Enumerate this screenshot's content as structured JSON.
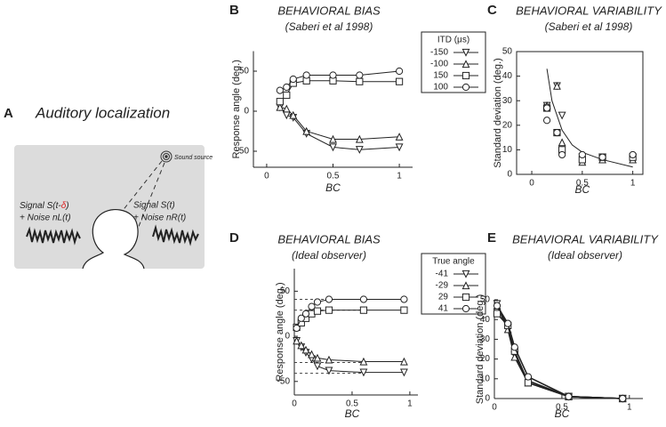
{
  "panel_a": {
    "label": "A",
    "title": "Auditory localization",
    "source": "Sound source",
    "left_signal": {
      "start": "Signal S(t-",
      "delta": "δ",
      "end": ")",
      "noise": "+ Noise nL(t)"
    },
    "right_signal": {
      "text": "Signal S(t)",
      "noise": "+ Noise nR(t)"
    }
  },
  "chart_data": [
    {
      "type": "line",
      "panel": "B",
      "title": "BEHAVIORAL BIAS",
      "subtitle": "(Saberi et al 1998)",
      "xlabel": "BC",
      "ylabel": "Response angle (deg.)",
      "xlim": [
        -0.1,
        1.1
      ],
      "ylim": [
        -70,
        75
      ],
      "xticks": [
        0,
        0.5,
        1
      ],
      "yticks": [
        -50,
        0,
        50
      ],
      "legend_title": "ITD (μs)",
      "x": [
        0.1,
        0.15,
        0.2,
        0.3,
        0.5,
        0.7,
        1.0
      ],
      "series": [
        {
          "name": "-150",
          "marker": "v",
          "values": [
            5,
            -5,
            -8,
            -28,
            -45,
            -48,
            -45
          ]
        },
        {
          "name": "-100",
          "marker": "^",
          "values": [
            5,
            3,
            -5,
            -25,
            -35,
            -35,
            -32
          ]
        },
        {
          "name": "150",
          "marker": "s",
          "values": [
            12,
            20,
            35,
            38,
            38,
            37,
            37
          ]
        },
        {
          "name": "100",
          "marker": "o",
          "values": [
            26,
            30,
            40,
            45,
            45,
            45,
            50
          ]
        }
      ]
    },
    {
      "type": "scatter",
      "panel": "C",
      "title": "BEHAVIORAL VARIABILITY",
      "subtitle": "(Saberi et al 1998)",
      "xlabel": "BC",
      "ylabel": "Standard deviation (deg.)",
      "xlim": [
        -0.15,
        1.1
      ],
      "ylim": [
        0,
        50
      ],
      "xticks": [
        0,
        0.5,
        1
      ],
      "yticks": [
        0,
        10,
        20,
        30,
        40,
        50
      ],
      "frame": true,
      "series": [
        {
          "marker": "v",
          "x": [
            0.15,
            0.25,
            0.3,
            0.5,
            0.7,
            1.0
          ],
          "values": [
            28,
            36,
            24,
            7,
            7,
            7
          ]
        },
        {
          "marker": "^",
          "x": [
            0.15,
            0.25,
            0.3,
            0.5,
            0.7,
            1.0
          ],
          "values": [
            28,
            36,
            13,
            5,
            6,
            6
          ]
        },
        {
          "marker": "s",
          "x": [
            0.15,
            0.25,
            0.3,
            0.5,
            0.7,
            1.0
          ],
          "values": [
            27,
            17,
            10,
            6,
            7,
            7
          ]
        },
        {
          "marker": "o",
          "x": [
            0.15,
            0.15,
            0.25,
            0.3,
            0.5,
            0.7,
            1.0
          ],
          "values": [
            27,
            22,
            17,
            8,
            8,
            7,
            8
          ]
        }
      ],
      "curve": {
        "x": [
          0.15,
          0.2,
          0.3,
          0.4,
          0.5,
          0.7,
          1.0
        ],
        "values": [
          43,
          30,
          18,
          12,
          9,
          6,
          3
        ]
      }
    },
    {
      "type": "line",
      "panel": "D",
      "title": "BEHAVIORAL BIAS",
      "subtitle": "(Ideal observer)",
      "xlabel": "BC",
      "ylabel": "Response angle (deg.)",
      "xlim": [
        0,
        1.07
      ],
      "ylim": [
        -65,
        75
      ],
      "xticks": [
        0,
        0.5,
        1
      ],
      "yticks": [
        -50,
        0,
        50
      ],
      "legend_title": "True angle",
      "reference_lines": [
        -41,
        -29,
        29,
        41
      ],
      "x": [
        0.02,
        0.06,
        0.1,
        0.15,
        0.2,
        0.3,
        0.6,
        0.95
      ],
      "series": [
        {
          "name": "-41",
          "marker": "v",
          "values": [
            -5,
            -12,
            -18,
            -25,
            -33,
            -38,
            -40,
            -40
          ]
        },
        {
          "name": "-29",
          "marker": "^",
          "values": [
            -5,
            -10,
            -15,
            -20,
            -24,
            -26,
            -28,
            -28
          ]
        },
        {
          "name": "29",
          "marker": "s",
          "values": [
            10,
            15,
            20,
            25,
            28,
            29,
            29,
            29
          ]
        },
        {
          "name": "41",
          "marker": "o",
          "values": [
            9,
            20,
            25,
            33,
            38,
            41,
            41,
            41
          ]
        }
      ]
    },
    {
      "type": "line",
      "panel": "E",
      "title": "BEHAVIORAL VARIABILITY",
      "subtitle": "(Ideal observer)",
      "xlabel": "BC",
      "ylabel": "Standard deviation (deg.)",
      "xlim": [
        0,
        1.1
      ],
      "ylim": [
        0,
        50
      ],
      "xticks": [
        0,
        0.5,
        1
      ],
      "yticks": [
        0,
        10,
        20,
        30,
        40,
        50
      ],
      "x": [
        0.02,
        0.1,
        0.15,
        0.25,
        0.55,
        0.95
      ],
      "series": [
        {
          "marker": "v",
          "values": [
            48,
            36,
            22,
            9,
            1,
            0
          ]
        },
        {
          "marker": "^",
          "values": [
            47,
            35,
            21,
            8,
            1,
            0
          ]
        },
        {
          "marker": "s",
          "values": [
            43,
            37,
            24,
            8,
            1,
            0
          ]
        },
        {
          "marker": "o",
          "values": [
            47,
            38,
            26,
            11,
            1,
            0
          ]
        }
      ]
    }
  ]
}
